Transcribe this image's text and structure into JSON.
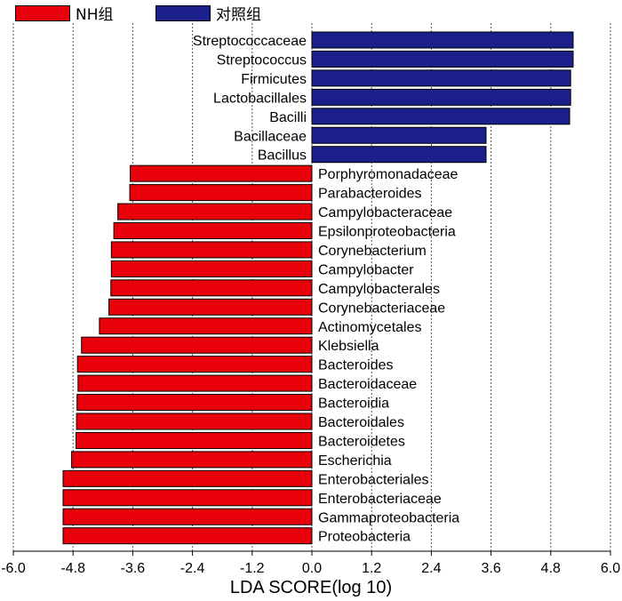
{
  "legend": {
    "items": [
      {
        "label": "NH组",
        "color": "#e8000b"
      },
      {
        "label": "对照组",
        "color": "#1a1f8c"
      }
    ]
  },
  "chart_data": {
    "type": "bar",
    "orientation": "horizontal",
    "xlabel": "LDA SCORE(log 10)",
    "xlim": [
      -6.0,
      6.0
    ],
    "xticks": [
      "-6.0",
      "-4.8",
      "-3.6",
      "-2.4",
      "-1.2",
      "0.0",
      "1.2",
      "2.4",
      "3.6",
      "4.8",
      "6.0"
    ],
    "grid": "vertical-dotted",
    "series": [
      {
        "name": "NH组",
        "color": "#e8000b"
      },
      {
        "name": "对照组",
        "color": "#1a1f8c"
      }
    ],
    "bars": [
      {
        "label": "Streptococcaceae",
        "value": 5.25,
        "group": "对照组"
      },
      {
        "label": "Streptococcus",
        "value": 5.25,
        "group": "对照组"
      },
      {
        "label": "Firmicutes",
        "value": 5.2,
        "group": "对照组"
      },
      {
        "label": "Lactobacillales",
        "value": 5.2,
        "group": "对照组"
      },
      {
        "label": "Bacilli",
        "value": 5.18,
        "group": "对照组"
      },
      {
        "label": "Bacillaceae",
        "value": 3.5,
        "group": "对照组"
      },
      {
        "label": "Bacillus",
        "value": 3.5,
        "group": "对照组"
      },
      {
        "label": "Porphyromonadaceae",
        "value": -3.65,
        "group": "NH组"
      },
      {
        "label": "Parabacteroides",
        "value": -3.66,
        "group": "NH组"
      },
      {
        "label": "Campylobacteraceae",
        "value": -3.9,
        "group": "NH组"
      },
      {
        "label": "Epsilonproteobacteria",
        "value": -3.98,
        "group": "NH组"
      },
      {
        "label": "Corynebacterium",
        "value": -4.03,
        "group": "NH组"
      },
      {
        "label": "Campylobacter",
        "value": -4.03,
        "group": "NH组"
      },
      {
        "label": "Campylobacterales",
        "value": -4.04,
        "group": "NH组"
      },
      {
        "label": "Corynebacteriaceae",
        "value": -4.08,
        "group": "NH组"
      },
      {
        "label": "Actinomycetales",
        "value": -4.27,
        "group": "NH组"
      },
      {
        "label": "Klebsiella",
        "value": -4.63,
        "group": "NH组"
      },
      {
        "label": "Bacteroides",
        "value": -4.71,
        "group": "NH组"
      },
      {
        "label": "Bacteroidaceae",
        "value": -4.7,
        "group": "NH组"
      },
      {
        "label": "Bacteroidia",
        "value": -4.72,
        "group": "NH组"
      },
      {
        "label": "Bacteroidales",
        "value": -4.73,
        "group": "NH组"
      },
      {
        "label": "Bacteroidetes",
        "value": -4.74,
        "group": "NH组"
      },
      {
        "label": "Escherichia",
        "value": -4.83,
        "group": "NH组"
      },
      {
        "label": "Enterobacteriales",
        "value": -5.0,
        "group": "NH组"
      },
      {
        "label": "Enterobacteriaceae",
        "value": -5.0,
        "group": "NH组"
      },
      {
        "label": "Gammaproteobacteria",
        "value": -5.0,
        "group": "NH组"
      },
      {
        "label": "Proteobacteria",
        "value": -5.0,
        "group": "NH组"
      }
    ]
  }
}
